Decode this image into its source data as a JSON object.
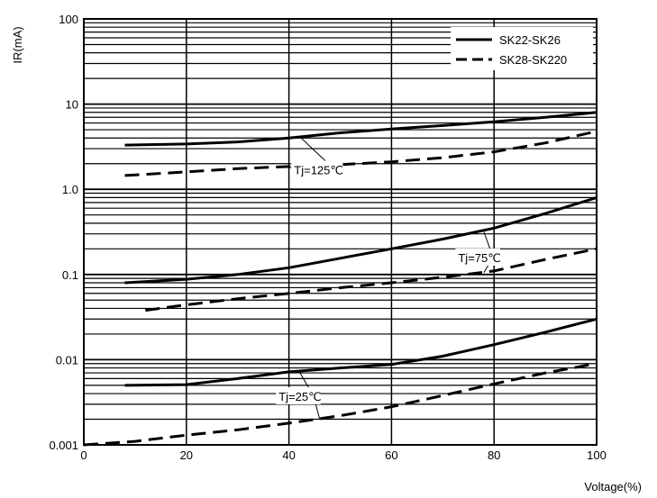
{
  "chart_data": {
    "type": "line",
    "title": "",
    "xlabel": "Voltage(%)",
    "ylabel": "IR(mA)",
    "xlim": [
      0,
      100
    ],
    "ylim": [
      0.001,
      100
    ],
    "yscale": "log",
    "grid": true,
    "legend_position": "top-right",
    "x_ticks": [
      0,
      20,
      40,
      60,
      80,
      100
    ],
    "x_tick_labels": [
      "0",
      "20",
      "40",
      "60",
      "80",
      "100"
    ],
    "y_ticks": [
      0.001,
      0.01,
      0.1,
      1,
      10,
      100
    ],
    "y_tick_labels": [
      "0.001",
      "0.01",
      "0.1",
      "1.0",
      "10",
      "100"
    ],
    "legend": [
      {
        "label": "SK22-SK26",
        "style": "solid"
      },
      {
        "label": "SK28-SK220",
        "style": "dashed"
      }
    ],
    "series": [
      {
        "group": "SK22-SK26",
        "condition": "Tj=125℃",
        "style": "solid",
        "x": [
          8,
          20,
          30,
          40,
          50,
          60,
          70,
          80,
          90,
          100
        ],
        "y": [
          3.3,
          3.4,
          3.6,
          4.0,
          4.6,
          5.1,
          5.6,
          6.2,
          7.0,
          8.0
        ]
      },
      {
        "group": "SK28-SK220",
        "condition": "Tj=125℃",
        "style": "dashed",
        "x": [
          8,
          20,
          30,
          40,
          50,
          60,
          70,
          80,
          90,
          100
        ],
        "y": [
          1.45,
          1.6,
          1.75,
          1.85,
          1.95,
          2.1,
          2.35,
          2.75,
          3.5,
          4.8
        ]
      },
      {
        "group": "SK22-SK26",
        "condition": "Tj=75℃",
        "style": "solid",
        "x": [
          8,
          20,
          30,
          40,
          50,
          60,
          70,
          80,
          90,
          100
        ],
        "y": [
          0.08,
          0.088,
          0.1,
          0.12,
          0.155,
          0.2,
          0.26,
          0.35,
          0.52,
          0.8
        ]
      },
      {
        "group": "SK28-SK220",
        "condition": "Tj=75℃",
        "style": "dashed",
        "x": [
          12,
          20,
          30,
          40,
          50,
          60,
          70,
          80,
          90,
          100
        ],
        "y": [
          0.038,
          0.044,
          0.052,
          0.06,
          0.07,
          0.08,
          0.093,
          0.11,
          0.15,
          0.2
        ]
      },
      {
        "group": "SK22-SK26",
        "condition": "Tj=25℃",
        "style": "solid",
        "x": [
          8,
          20,
          30,
          40,
          50,
          60,
          70,
          80,
          90,
          100
        ],
        "y": [
          0.005,
          0.0051,
          0.006,
          0.0072,
          0.008,
          0.0088,
          0.011,
          0.015,
          0.021,
          0.03
        ]
      },
      {
        "group": "SK28-SK220",
        "condition": "Tj=25℃",
        "style": "dashed",
        "x": [
          0,
          10,
          20,
          30,
          40,
          50,
          60,
          70,
          80,
          90,
          100
        ],
        "y": [
          0.001,
          0.0011,
          0.0013,
          0.0015,
          0.0018,
          0.0022,
          0.0028,
          0.0038,
          0.0052,
          0.007,
          0.009
        ]
      }
    ],
    "annotations": [
      {
        "text": "Tj=125℃",
        "anchor_x": 41,
        "anchor_y": 1.5,
        "targets": [
          {
            "x": 42,
            "y": 4.2
          },
          {
            "x": 40,
            "y": 1.8
          }
        ]
      },
      {
        "text": "Tj=75℃",
        "anchor_x": 73,
        "anchor_y": 0.14,
        "targets": [
          {
            "x": 78,
            "y": 0.32
          },
          {
            "x": 78,
            "y": 0.105
          }
        ]
      },
      {
        "text": "Tj=25℃",
        "anchor_x": 38,
        "anchor_y": 0.0033,
        "targets": [
          {
            "x": 42,
            "y": 0.0073
          },
          {
            "x": 46,
            "y": 0.002
          }
        ]
      }
    ]
  }
}
